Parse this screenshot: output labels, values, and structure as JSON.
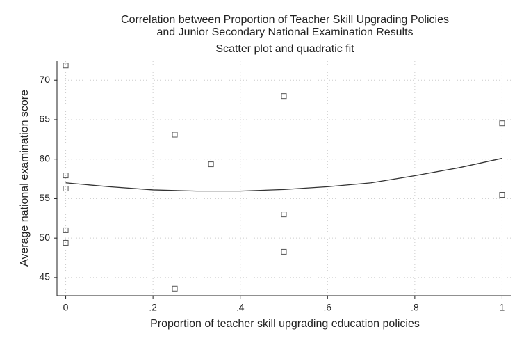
{
  "chart_data": {
    "type": "scatter",
    "title": [
      "Correlation between Proportion of Teacher Skill Upgrading Policies",
      "and Junior Secondary National Examination Results"
    ],
    "subtitle": "Scatter plot and quadratic fit",
    "x_label": "Proportion of teacher skill upgrading education policies",
    "y_label": "Average national examination score",
    "xlim": [
      -0.02,
      1.02
    ],
    "ylim": [
      42.7,
      72.4
    ],
    "xticks": [
      0,
      {
        "value": 0.2,
        "label": ".2"
      },
      {
        "value": 0.4,
        "label": ".4"
      },
      {
        "value": 0.6,
        "label": ".6"
      },
      {
        "value": 0.8,
        "label": ".8"
      },
      1
    ],
    "yticks": [
      45,
      50,
      55,
      60,
      65,
      70
    ],
    "grid": true,
    "points": {
      "color": "#555555",
      "x": [
        0,
        0,
        0,
        0,
        0,
        0.25,
        0.25,
        0.333,
        0.5,
        0.5,
        0.5,
        1,
        1
      ],
      "y": [
        71.85,
        57.94,
        56.27,
        50.99,
        49.4,
        63.1,
        43.6,
        59.35,
        67.98,
        53.0,
        48.26,
        64.54,
        55.48
      ]
    },
    "fit": {
      "color": "#333333",
      "x": [
        0,
        0.1,
        0.2,
        0.3,
        0.4,
        0.5,
        0.6,
        0.7,
        0.8,
        0.9,
        1
      ],
      "y": [
        57.0,
        56.5,
        56.1,
        55.95,
        55.95,
        56.15,
        56.5,
        57.0,
        57.9,
        58.9,
        60.1
      ]
    }
  }
}
